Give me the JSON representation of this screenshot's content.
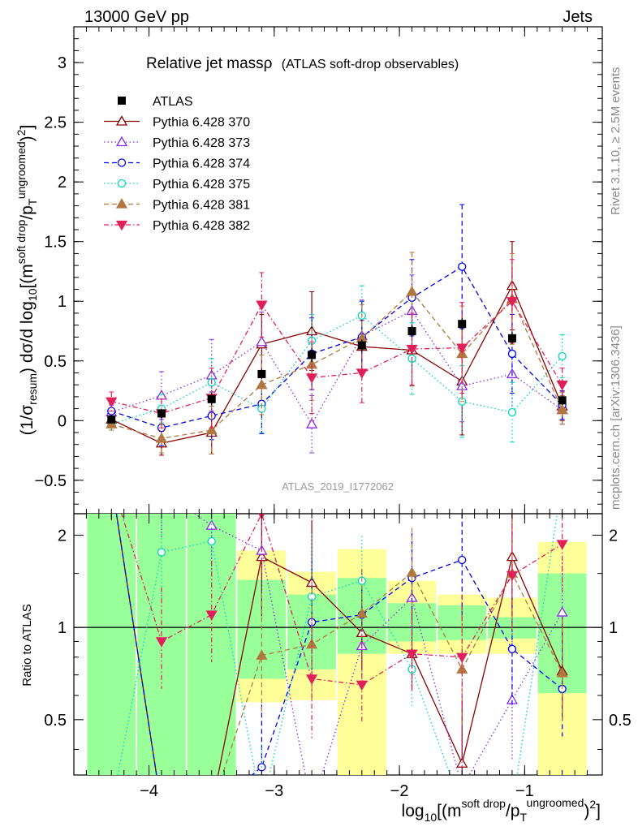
{
  "header": {
    "left": "13000 GeV pp",
    "right": "Jets"
  },
  "title": {
    "main": "Relative jet massρ",
    "sub": "(ATLAS soft-drop observables)"
  },
  "watermark": "ATLAS_2019_I1772062",
  "side_labels": {
    "rivet": "Rivet 3.1.10, ≥ 2.5M events",
    "mcplots": "mcplots.cern.ch [arXiv:1306.3436]"
  },
  "axes": {
    "ylabel_main": "(1/σresum) dσ/d log10[(m soft drop/pT ungroomed)2]",
    "ylabel_ratio": "Ratio to ATLAS",
    "xlabel": "log10[(m soft drop/pT ungroomed)2]",
    "x_ticks": [
      "−4",
      "−3",
      "−2",
      "−1"
    ],
    "y_ticks_main": [
      "−0.5",
      "0",
      "0.5",
      "1",
      "1.5",
      "2",
      "2.5",
      "3"
    ],
    "y_ticks_ratio": [
      "0.5",
      "1",
      "2"
    ]
  },
  "legend": [
    {
      "label": "ATLAS",
      "color": "#000000",
      "marker": "square-filled",
      "line": "none"
    },
    {
      "label": "Pythia 6.428 370",
      "color": "#8b0000",
      "marker": "triangle-up-open",
      "line": "solid"
    },
    {
      "label": "Pythia 6.428 373",
      "color": "#8a2be2",
      "marker": "triangle-up-open",
      "line": "dotted"
    },
    {
      "label": "Pythia 6.428 374",
      "color": "#0000ee",
      "marker": "circle-open",
      "line": "dashed"
    },
    {
      "label": "Pythia 6.428 375",
      "color": "#00d5c0",
      "marker": "circle-open",
      "line": "dotted"
    },
    {
      "label": "Pythia 6.428 381",
      "color": "#b07840",
      "marker": "triangle-up-filled",
      "line": "dashed"
    },
    {
      "label": "Pythia 6.428 382",
      "color": "#e0205a",
      "marker": "triangle-down-filled",
      "line": "dashdot"
    }
  ],
  "chart_data": {
    "type": "scatter",
    "xlim": [
      -4.6,
      -0.38
    ],
    "ylim_main": [
      -0.78,
      3.3
    ],
    "ylim_ratio": [
      0.33,
      2.35
    ],
    "bin_edges": [
      -4.5,
      -4.1,
      -3.7,
      -3.3,
      -2.9,
      -2.5,
      -2.1,
      -1.7,
      -1.3,
      -0.9,
      -0.5
    ],
    "x": [
      -4.3,
      -3.9,
      -3.5,
      -3.1,
      -2.7,
      -2.3,
      -1.9,
      -1.5,
      -1.1,
      -0.7
    ],
    "atlas": {
      "values": [
        0.01,
        0.06,
        0.18,
        0.39,
        0.55,
        0.63,
        0.75,
        0.81,
        0.69,
        0.17
      ],
      "errors": [
        0.03,
        0.04,
        0.05,
        0.04,
        0.06,
        0.05,
        0.05,
        0.05,
        0.05,
        0.04
      ]
    },
    "series": [
      {
        "name": "Pythia 6.428 370",
        "values": [
          0.01,
          -0.19,
          -0.1,
          0.64,
          0.75,
          0.62,
          0.59,
          0.33,
          1.13,
          0.12
        ],
        "errors": [
          0.05,
          0.1,
          0.18,
          0.25,
          0.33,
          0.22,
          0.3,
          0.45,
          0.37,
          0.12
        ],
        "ratio": [
          3.2,
          -0.8,
          -0.6,
          1.7,
          1.4,
          0.96,
          0.82,
          0.36,
          1.7,
          0.72
        ],
        "ratio_err": [
          0.5,
          0.5,
          0.5,
          0.6,
          0.6,
          0.4,
          0.4,
          0.6,
          0.6,
          0.5
        ]
      },
      {
        "name": "Pythia 6.428 373",
        "values": [
          0.07,
          0.21,
          0.38,
          0.66,
          -0.03,
          0.71,
          0.92,
          0.29,
          0.39,
          0.09
        ],
        "errors": [
          0.06,
          0.2,
          0.3,
          0.25,
          0.24,
          0.3,
          0.3,
          0.3,
          0.32,
          0.12
        ],
        "ratio": [
          4.5,
          2.8,
          2.15,
          1.78,
          0.02,
          0.87,
          1.25,
          0.3,
          0.58,
          1.12
        ],
        "ratio_err": [
          0.5,
          0.5,
          0.5,
          0.6,
          0.6,
          0.4,
          0.4,
          0.6,
          0.6,
          0.5
        ]
      },
      {
        "name": "Pythia 6.428 374",
        "values": [
          0.08,
          -0.06,
          0.04,
          0.14,
          0.56,
          0.7,
          1.03,
          1.29,
          0.56,
          0.13
        ],
        "errors": [
          0.06,
          0.15,
          0.2,
          0.25,
          0.3,
          0.3,
          0.32,
          0.52,
          0.33,
          0.12
        ],
        "ratio": [
          5.0,
          -0.9,
          0.2,
          0.35,
          1.04,
          1.1,
          1.45,
          1.66,
          0.85,
          0.63
        ],
        "ratio_err": [
          0.5,
          0.5,
          0.5,
          0.6,
          0.6,
          0.4,
          0.4,
          0.6,
          0.6,
          0.5
        ]
      },
      {
        "name": "Pythia 6.428 375",
        "values": [
          -0.03,
          0.1,
          0.32,
          0.1,
          0.67,
          0.88,
          0.52,
          0.16,
          0.07,
          0.54
        ],
        "errors": [
          0.05,
          0.12,
          0.2,
          0.2,
          0.22,
          0.25,
          0.3,
          0.3,
          0.25,
          0.18
        ],
        "ratio": [
          -2.0,
          1.76,
          1.91,
          0.26,
          1.26,
          1.42,
          0.73,
          0.2,
          0.11,
          3.2
        ],
        "ratio_err": [
          0.5,
          0.5,
          0.5,
          0.6,
          0.6,
          0.4,
          0.4,
          0.6,
          0.6,
          0.5
        ]
      },
      {
        "name": "Pythia 6.428 381",
        "values": [
          -0.03,
          -0.15,
          -0.08,
          0.3,
          0.47,
          0.69,
          1.08,
          0.56,
          1.02,
          0.09
        ],
        "errors": [
          0.05,
          0.12,
          0.2,
          0.25,
          0.3,
          0.28,
          0.33,
          0.4,
          0.38,
          0.12
        ],
        "ratio": [
          -1.5,
          -0.6,
          -0.3,
          0.81,
          0.88,
          1.11,
          1.51,
          0.73,
          1.5,
          0.71
        ],
        "ratio_err": [
          0.5,
          0.5,
          0.5,
          0.6,
          0.6,
          0.4,
          0.4,
          0.6,
          0.6,
          0.5
        ]
      },
      {
        "name": "Pythia 6.428 382",
        "values": [
          0.16,
          0.06,
          0.19,
          0.97,
          0.36,
          0.4,
          0.6,
          0.61,
          1.0,
          0.3
        ],
        "errors": [
          0.08,
          0.12,
          0.25,
          0.27,
          0.3,
          0.25,
          0.3,
          0.38,
          0.35,
          0.14
        ],
        "ratio": [
          8.0,
          0.9,
          1.1,
          2.35,
          0.68,
          0.65,
          0.82,
          0.8,
          1.48,
          1.87
        ],
        "ratio_err": [
          0.5,
          0.5,
          0.5,
          0.6,
          0.6,
          0.4,
          0.4,
          0.6,
          0.6,
          0.5
        ]
      }
    ],
    "uncertainty_bands": {
      "inner_green": [
        [
          0.33,
          2.35
        ],
        [
          0.33,
          2.35
        ],
        [
          0.33,
          2.35
        ],
        [
          0.68,
          1.43
        ],
        [
          0.73,
          1.28
        ],
        [
          0.82,
          1.45
        ],
        [
          0.9,
          1.2
        ],
        [
          0.91,
          1.18
        ],
        [
          0.92,
          1.08
        ],
        [
          0.61,
          1.5
        ]
      ],
      "outer_yellow": [
        [
          0.33,
          2.35
        ],
        [
          0.33,
          2.35
        ],
        [
          0.33,
          2.35
        ],
        [
          0.57,
          1.78
        ],
        [
          0.58,
          1.52
        ],
        [
          0.33,
          1.8
        ],
        [
          0.82,
          1.42
        ],
        [
          0.82,
          1.28
        ],
        [
          0.82,
          1.25
        ],
        [
          0.33,
          1.9
        ]
      ]
    },
    "grid": false,
    "legend_position": "top-left"
  }
}
